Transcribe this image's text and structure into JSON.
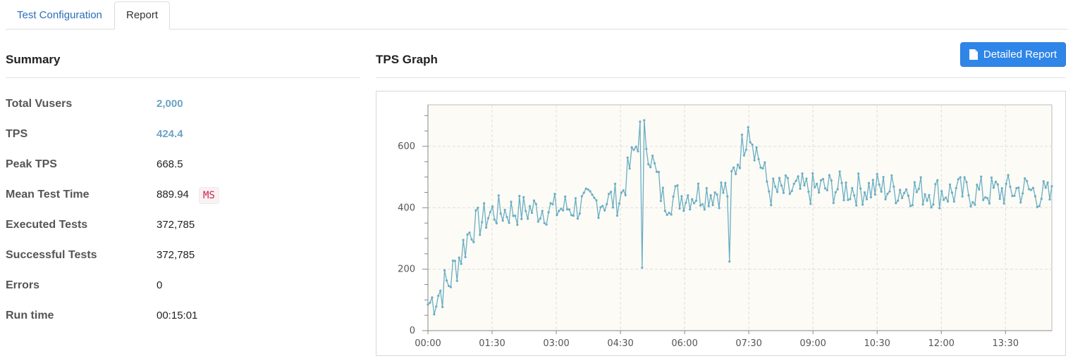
{
  "tabs": [
    {
      "label": "Test Configuration",
      "active": false
    },
    {
      "label": "Report",
      "active": true
    }
  ],
  "summary": {
    "title": "Summary",
    "rows": [
      {
        "label": "Total Vusers",
        "value": "2,000"
      },
      {
        "label": "TPS",
        "value": "424.4"
      },
      {
        "label": "Peak TPS",
        "value": "668.5"
      },
      {
        "label": "Mean Test Time",
        "value": "889.94",
        "unit": "MS"
      },
      {
        "label": "Executed Tests",
        "value": "372,785"
      },
      {
        "label": "Successful Tests",
        "value": "372,785"
      },
      {
        "label": "Errors",
        "value": "0"
      },
      {
        "label": "Run time",
        "value": "00:15:01"
      }
    ]
  },
  "graph": {
    "title": "TPS Graph",
    "detailed_report_label": "Detailed Report",
    "button_icon": "file-icon"
  },
  "colors": {
    "accent": "#2f86e8",
    "link": "#6ba3c6",
    "series": "#6aaec4",
    "plot_bg": "#fcfbf5"
  },
  "chart_data": {
    "type": "line",
    "title": "",
    "xlabel": "",
    "ylabel": "",
    "x_ticks": [
      "00:00",
      "01:30",
      "03:00",
      "04:30",
      "06:00",
      "07:30",
      "09:00",
      "10:30",
      "12:00",
      "13:30"
    ],
    "y_ticks": [
      0,
      200,
      400,
      600
    ],
    "xlim": [
      0,
      875
    ],
    "ylim": [
      0,
      735
    ],
    "grid": true,
    "legend": "none",
    "series": [
      {
        "x": [
          0,
          30,
          60,
          90,
          120,
          150,
          180,
          210,
          240,
          270,
          300,
          330,
          360,
          390,
          420,
          450,
          480,
          510,
          540,
          570,
          600,
          630,
          660,
          690,
          720,
          750,
          780,
          810,
          840,
          875
        ],
        "values": [
          85,
          160,
          330,
          385,
          390,
          395,
          395,
          405,
          420,
          430,
          668,
          425,
          440,
          450,
          455,
          662,
          450,
          455,
          460,
          465,
          460,
          465,
          460,
          455,
          450,
          450,
          450,
          455,
          460,
          430
        ]
      }
    ]
  }
}
